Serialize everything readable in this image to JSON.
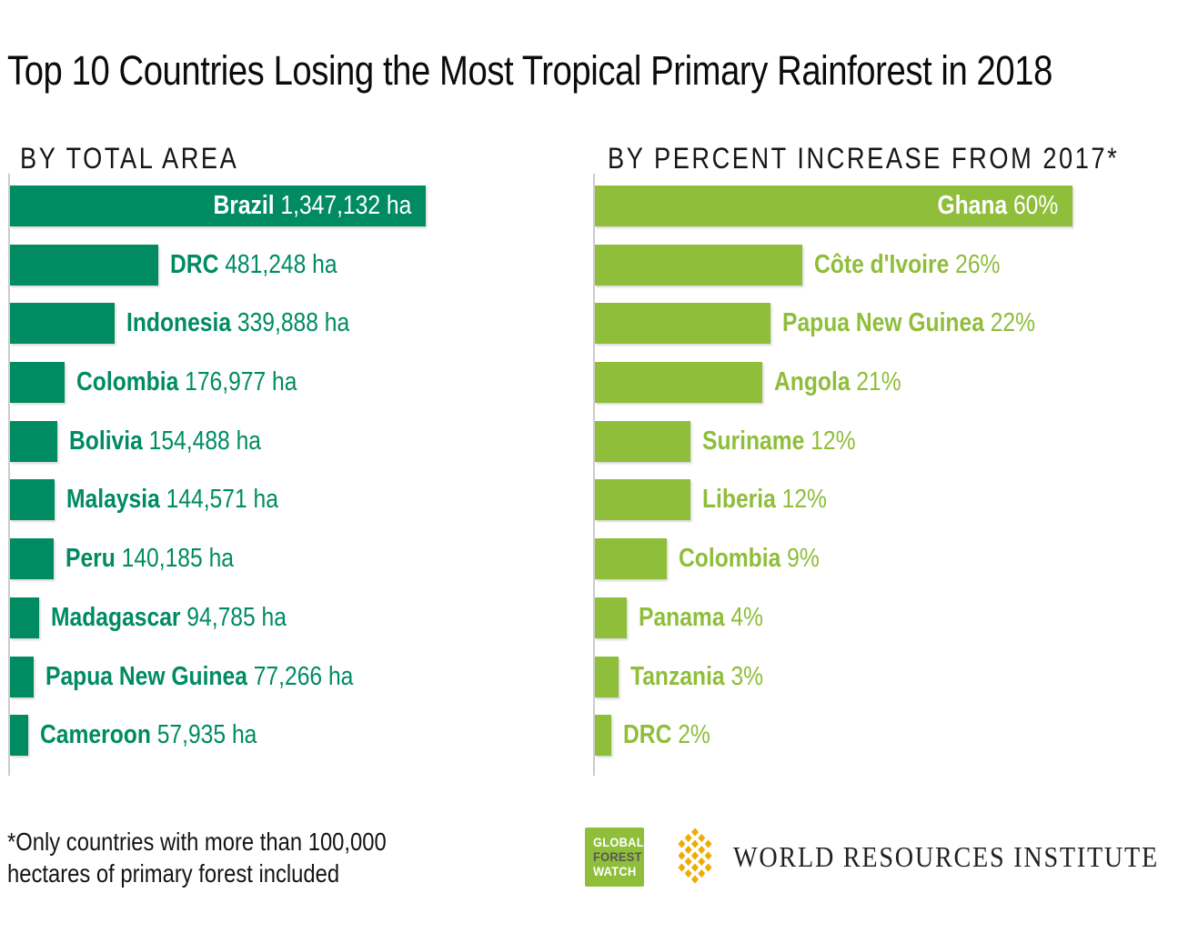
{
  "title": "Top 10 Countries Losing the Most Tropical Primary Rainforest in 2018",
  "footnote": "*Only countries with more than 100,000\nhectares of primary forest included",
  "colors": {
    "area_bar": "#008B62",
    "percent_bar": "#8FBE3B",
    "axis_line": "#cccccc",
    "gfw_green": "#8FBE3B",
    "gfw_forest_text": "#55565a",
    "wri_gold": "#F0AB00",
    "wri_text": "#231f20",
    "title_text": "#0b0b0b"
  },
  "logos": {
    "gfw": {
      "line1": "GLOBAL",
      "line2": "FOREST",
      "line3": "WATCH"
    },
    "wri": {
      "name": "WORLD RESOURCES INSTITUTE",
      "mark": "gold-woven-diamond"
    }
  },
  "chart_data": [
    {
      "type": "bar",
      "orientation": "horizontal",
      "title": "BY TOTAL AREA",
      "unit": "ha",
      "legend_position": "none",
      "grid": false,
      "xlim": [
        0,
        1347132
      ],
      "bar_color": "#008B62",
      "first_label_inside": true,
      "categories": [
        "Brazil",
        "DRC",
        "Indonesia",
        "Colombia",
        "Bolivia",
        "Malaysia",
        "Peru",
        "Madagascar",
        "Papua New Guinea",
        "Cameroon"
      ],
      "values": [
        1347132,
        481248,
        339888,
        176977,
        154488,
        144571,
        140185,
        94785,
        77266,
        57935
      ],
      "value_labels": [
        "1,347,132 ha",
        "481,248 ha",
        "339,888 ha",
        "176,977 ha",
        "154,488 ha",
        "144,571 ha",
        "140,185 ha",
        "94,785 ha",
        "77,266 ha",
        "57,935 ha"
      ]
    },
    {
      "type": "bar",
      "orientation": "horizontal",
      "title": "BY PERCENT INCREASE FROM 2017*",
      "unit": "%",
      "legend_position": "none",
      "grid": false,
      "xlim": [
        0,
        60
      ],
      "bar_color": "#8FBE3B",
      "first_label_inside": true,
      "categories": [
        "Ghana",
        "Côte d'Ivoire",
        "Papua New Guinea",
        "Angola",
        "Suriname",
        "Liberia",
        "Colombia",
        "Panama",
        "Tanzania",
        "DRC"
      ],
      "values": [
        60,
        26,
        22,
        21,
        12,
        12,
        9,
        4,
        3,
        2
      ],
      "value_labels": [
        "60%",
        "26%",
        "22%",
        "21%",
        "12%",
        "12%",
        "9%",
        "4%",
        "3%",
        "2%"
      ]
    }
  ]
}
